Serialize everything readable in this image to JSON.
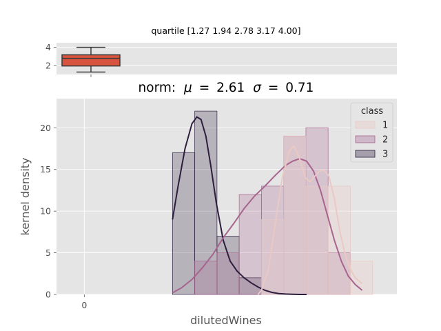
{
  "chart_data": [
    {
      "type": "box",
      "title": "quartile [1.27 1.94 2.78 3.17 4.00]",
      "x_range": [
        1.27,
        4.0
      ],
      "ylim": [
        1.0,
        4.5
      ],
      "yticks": [
        "2",
        "4"
      ],
      "box": {
        "min": 1.27,
        "q1": 1.94,
        "median": 2.78,
        "q3": 3.17,
        "max": 4.0
      },
      "color": "#d9543f"
    },
    {
      "type": "histogram+kde",
      "title": "norm: μ = 2.61 σ = 0.71",
      "title_parts": {
        "prefix": "norm:",
        "mu_label": "μ",
        "mu_value": "2.61",
        "sigma_label": "σ",
        "sigma_value": "0.71",
        "eq": "="
      },
      "xlabel": "dilutedWines",
      "ylabel": "kernel density",
      "xlim": [
        -0.4,
        4.5
      ],
      "ylim": [
        0,
        23.5
      ],
      "xticks": [
        "0"
      ],
      "yticks": [
        "0",
        "5",
        "10",
        "15",
        "20"
      ],
      "legend": {
        "title": "class",
        "position": "top-right"
      },
      "grid": true,
      "series": [
        {
          "name": "3",
          "color": "#2d1e3e",
          "bin_edges": [
            1.27,
            1.59,
            1.91,
            2.23,
            2.55,
            2.87
          ],
          "counts": [
            17,
            22,
            7,
            2,
            0
          ],
          "kde_x": [
            1.27,
            1.35,
            1.45,
            1.55,
            1.62,
            1.68,
            1.75,
            1.82,
            1.9,
            2.0,
            2.1,
            2.2,
            2.3,
            2.4,
            2.5,
            2.6,
            2.7,
            2.8,
            2.9,
            3.0,
            3.1,
            3.2
          ],
          "kde_y": [
            9.0,
            13.0,
            17.5,
            20.5,
            21.3,
            21.0,
            19.0,
            15.5,
            11.0,
            6.5,
            4.0,
            2.8,
            2.0,
            1.4,
            0.9,
            0.5,
            0.25,
            0.1,
            0.05,
            0.02,
            0.0,
            0.0
          ]
        },
        {
          "name": "2",
          "color": "#a7648e",
          "bin_edges": [
            1.59,
            1.91,
            2.23,
            2.55,
            2.87,
            3.19,
            3.51,
            3.83
          ],
          "counts": [
            4,
            5,
            12,
            13,
            19,
            20,
            5
          ],
          "kde_x": [
            1.27,
            1.4,
            1.55,
            1.7,
            1.85,
            2.0,
            2.15,
            2.3,
            2.45,
            2.6,
            2.75,
            2.9,
            3.0,
            3.1,
            3.2,
            3.3,
            3.4,
            3.5,
            3.6,
            3.7,
            3.8,
            3.9,
            4.0
          ],
          "kde_y": [
            0.2,
            0.8,
            1.8,
            3.2,
            4.8,
            6.8,
            8.5,
            10.3,
            11.8,
            13.0,
            14.3,
            15.5,
            16.0,
            16.3,
            16.0,
            14.8,
            12.5,
            9.5,
            6.5,
            4.0,
            2.2,
            1.2,
            0.5
          ]
        },
        {
          "name": "1",
          "color": "#eac9c4",
          "bin_edges": [
            2.55,
            2.87,
            3.19,
            3.51,
            3.83,
            4.15
          ],
          "counts": [
            9,
            19,
            13,
            13,
            4
          ],
          "kde_x": [
            2.5,
            2.55,
            2.65,
            2.75,
            2.85,
            2.95,
            3.02,
            3.1,
            3.18,
            3.25,
            3.32,
            3.38,
            3.45,
            3.52,
            3.6,
            3.68,
            3.75,
            3.82,
            3.9,
            4.0
          ],
          "kde_y": [
            0.0,
            0.5,
            3.0,
            8.5,
            14.0,
            17.2,
            17.8,
            16.3,
            14.0,
            13.5,
            14.2,
            14.8,
            14.9,
            14.2,
            11.5,
            7.5,
            5.0,
            3.2,
            2.0,
            1.3
          ]
        }
      ]
    }
  ]
}
